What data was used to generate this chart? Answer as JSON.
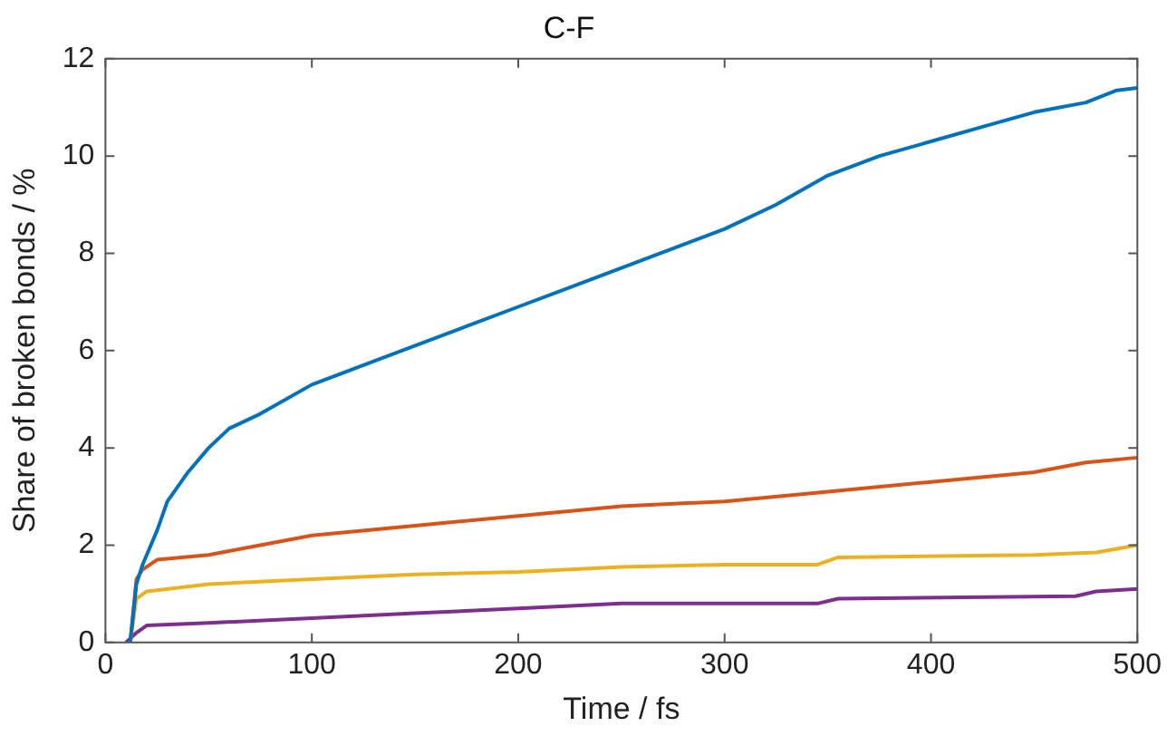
{
  "chart_data": {
    "type": "line",
    "title": "C-F",
    "xlabel": "Time / fs",
    "ylabel": "Share of broken bonds / %",
    "xlim": [
      0,
      500
    ],
    "xticks": [
      0,
      100,
      200,
      300,
      400,
      500
    ],
    "ylim": [
      0,
      12
    ],
    "yticks": [
      0,
      2,
      4,
      6,
      8,
      10,
      12
    ],
    "grid": false,
    "legend": false,
    "marker": "none",
    "line_style": "solid",
    "series": [
      {
        "color": "#0072bd",
        "x": [
          12,
          15,
          18,
          25,
          30,
          40,
          50,
          60,
          75,
          100,
          125,
          150,
          175,
          200,
          225,
          250,
          275,
          300,
          325,
          350,
          375,
          400,
          425,
          450,
          475,
          490,
          500
        ],
        "values": [
          0,
          1.2,
          1.6,
          2.3,
          2.9,
          3.5,
          4.0,
          4.4,
          4.7,
          5.3,
          5.7,
          6.1,
          6.5,
          6.9,
          7.3,
          7.7,
          8.1,
          8.5,
          9.0,
          9.6,
          10.0,
          10.3,
          10.6,
          10.9,
          11.1,
          11.35,
          11.4
        ]
      },
      {
        "color": "#d95319",
        "x": [
          12,
          15,
          18,
          25,
          50,
          75,
          100,
          150,
          200,
          250,
          300,
          350,
          400,
          450,
          475,
          500
        ],
        "values": [
          0,
          1.3,
          1.5,
          1.7,
          1.8,
          2.0,
          2.2,
          2.4,
          2.6,
          2.8,
          2.9,
          3.1,
          3.3,
          3.5,
          3.7,
          3.8
        ]
      },
      {
        "color": "#edb120",
        "x": [
          12,
          15,
          20,
          50,
          100,
          150,
          200,
          250,
          300,
          345,
          355,
          450,
          480,
          500
        ],
        "values": [
          0,
          0.9,
          1.05,
          1.2,
          1.3,
          1.4,
          1.45,
          1.55,
          1.6,
          1.6,
          1.75,
          1.8,
          1.85,
          2.0
        ]
      },
      {
        "color": "#7e2f8e",
        "x": [
          10,
          15,
          20,
          50,
          100,
          150,
          200,
          250,
          345,
          355,
          470,
          480,
          500
        ],
        "values": [
          0,
          0.2,
          0.35,
          0.4,
          0.5,
          0.6,
          0.7,
          0.8,
          0.8,
          0.9,
          0.95,
          1.05,
          1.1
        ]
      }
    ]
  }
}
